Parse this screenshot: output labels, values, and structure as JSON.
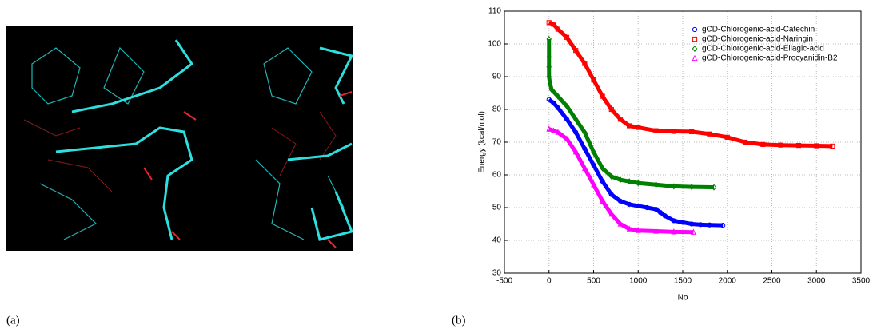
{
  "panel_labels": [
    "(a)",
    "(b)"
  ],
  "chart_data": {
    "type": "scatter",
    "xlabel": "No",
    "ylabel": "Energy (kcal/mol)",
    "xlim": [
      -500,
      3500
    ],
    "xticks": [
      -500,
      0,
      500,
      1000,
      1500,
      2000,
      2500,
      3000,
      3500
    ],
    "ylim": [
      30,
      110
    ],
    "yticks": [
      30,
      40,
      50,
      60,
      70,
      80,
      90,
      100,
      110
    ],
    "grid": true,
    "legend": "upper right",
    "series": [
      {
        "name": "gCD-Chlorogenic-acid-Catechin",
        "color": "#0000ff",
        "marker": "circle",
        "x": [
          0,
          50,
          100,
          200,
          300,
          400,
          500,
          600,
          700,
          800,
          900,
          1000,
          1100,
          1200,
          1250,
          1300,
          1400,
          1500,
          1600,
          1700,
          1800,
          1950
        ],
        "values": [
          83,
          82,
          80.5,
          77,
          73,
          68,
          63,
          58,
          54,
          52,
          51,
          50.5,
          50,
          49.5,
          48.5,
          47.5,
          46,
          45.5,
          45,
          44.8,
          44.7,
          44.6
        ]
      },
      {
        "name": "gCD-Chlorogenic-acid-Naringin",
        "color": "#ff0000",
        "marker": "square",
        "x": [
          0,
          50,
          100,
          200,
          300,
          400,
          500,
          600,
          700,
          800,
          900,
          1000,
          1200,
          1400,
          1600,
          1800,
          2000,
          2200,
          2400,
          2600,
          2800,
          3000,
          3180
        ],
        "values": [
          106.5,
          106,
          104.5,
          102,
          98,
          94,
          89,
          84,
          80,
          77,
          75,
          74.5,
          73.5,
          73.3,
          73.2,
          72.5,
          71.5,
          70,
          69.3,
          69.1,
          69,
          68.9,
          68.8
        ]
      },
      {
        "name": "gCD-Chlorogenic-acid-Ellagic-acid",
        "color": "#008000",
        "marker": "diamond",
        "x": [
          0,
          0,
          0,
          0,
          10,
          30,
          100,
          200,
          300,
          400,
          500,
          600,
          700,
          800,
          900,
          1000,
          1200,
          1400,
          1600,
          1850
        ],
        "values": [
          101.5,
          96,
          93,
          90,
          88,
          86,
          84,
          81,
          77,
          73,
          67,
          62,
          59.5,
          58.5,
          58,
          57.5,
          57,
          56.5,
          56.3,
          56.2
        ]
      },
      {
        "name": "gCD-Chlorogenic-acid-Procyanidin-B2",
        "color": "#ff00ff",
        "marker": "triangle",
        "x": [
          0,
          50,
          100,
          200,
          300,
          400,
          500,
          600,
          700,
          800,
          900,
          1000,
          1200,
          1400,
          1620
        ],
        "values": [
          74,
          73.5,
          73,
          71,
          67,
          62,
          57,
          52,
          48,
          45,
          43.5,
          43,
          42.8,
          42.6,
          42.5
        ]
      }
    ]
  }
}
